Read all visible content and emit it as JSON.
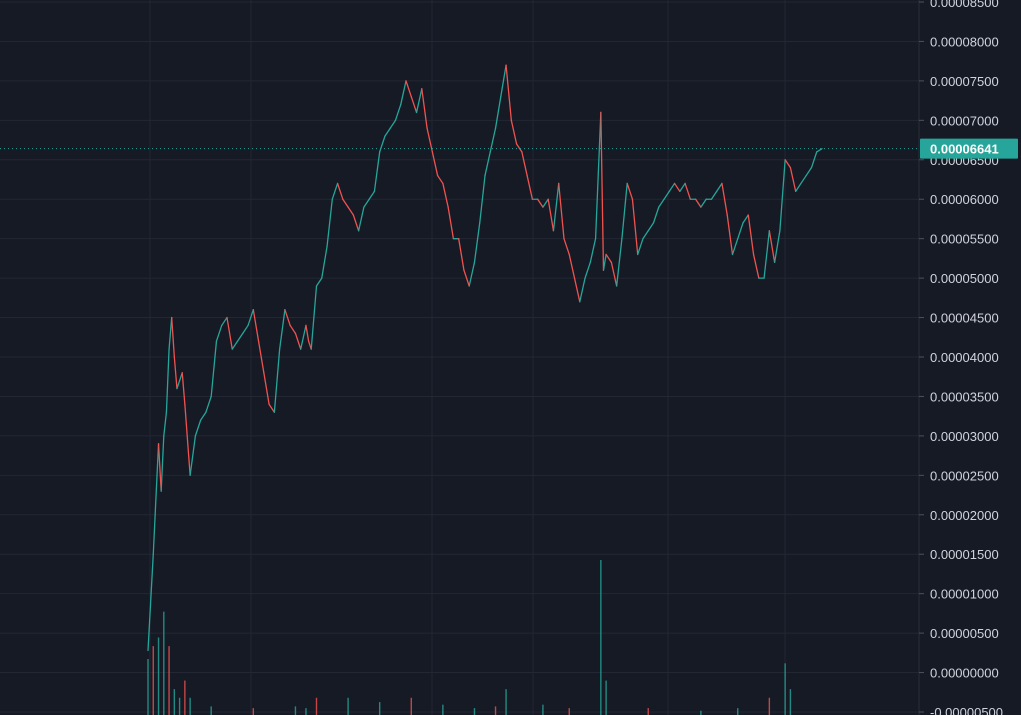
{
  "chart_data": {
    "type": "line",
    "title": "",
    "xlabel": "",
    "ylabel": "",
    "ylim": [
      -5e-06,
      8.5e-05
    ],
    "y_ticks": [
      "0.00008500",
      "0.00008000",
      "0.00007500",
      "0.00007000",
      "0.00006500",
      "0.00006000",
      "0.00005500",
      "0.00005000",
      "0.00004500",
      "0.00004000",
      "0.00003500",
      "0.00003000",
      "0.00002500",
      "0.00002000",
      "0.00001500",
      "0.00001000",
      "0.00000500",
      "0.00000000",
      "-0.00000500"
    ],
    "y_tick_values": [
      8.5e-05,
      8e-05,
      7.5e-05,
      7e-05,
      6.5e-05,
      6e-05,
      5.5e-05,
      5e-05,
      4.5e-05,
      4e-05,
      3.5e-05,
      3e-05,
      2.5e-05,
      2e-05,
      1.5e-05,
      1e-05,
      5e-06,
      0,
      -5e-06
    ],
    "last_price": 6.641e-05,
    "last_price_label": "0.00006641",
    "grid": true,
    "colors": {
      "background": "#161a25",
      "grid": "#232733",
      "up": "#26a69a",
      "down": "#ef5350",
      "text": "#d1d4dc",
      "price_tag": "#26a69a",
      "axis_border": "#2a2e39"
    },
    "price_x_range": [
      0,
      120
    ],
    "series": [
      {
        "values": [
          [
            0,
            2.8e-06
          ],
          [
            1,
            1.5e-05
          ],
          [
            2,
            2.9e-05
          ],
          [
            2.5,
            2.3e-05
          ],
          [
            3,
            3e-05
          ],
          [
            3.5,
            3.3e-05
          ],
          [
            4,
            4.1e-05
          ],
          [
            4.5,
            4.5e-05
          ],
          [
            5,
            4e-05
          ],
          [
            5.5,
            3.6e-05
          ],
          [
            6,
            3.7e-05
          ],
          [
            6.5,
            3.8e-05
          ],
          [
            7,
            3.4e-05
          ],
          [
            8,
            2.5e-05
          ],
          [
            9,
            3e-05
          ],
          [
            10,
            3.2e-05
          ],
          [
            11,
            3.3e-05
          ],
          [
            12,
            3.5e-05
          ],
          [
            13,
            4.2e-05
          ],
          [
            14,
            4.4e-05
          ],
          [
            15,
            4.5e-05
          ],
          [
            16,
            4.1e-05
          ],
          [
            17,
            4.2e-05
          ],
          [
            18,
            4.3e-05
          ],
          [
            19,
            4.4e-05
          ],
          [
            20,
            4.6e-05
          ],
          [
            21,
            4.2e-05
          ],
          [
            22,
            3.8e-05
          ],
          [
            23,
            3.4e-05
          ],
          [
            24,
            3.3e-05
          ],
          [
            25,
            4.1e-05
          ],
          [
            26,
            4.6e-05
          ],
          [
            27,
            4.4e-05
          ],
          [
            28,
            4.3e-05
          ],
          [
            29,
            4.1e-05
          ],
          [
            30,
            4.4e-05
          ],
          [
            30.5,
            4.2e-05
          ],
          [
            31,
            4.1e-05
          ],
          [
            32,
            4.9e-05
          ],
          [
            33,
            5e-05
          ],
          [
            34,
            5.4e-05
          ],
          [
            35,
            6e-05
          ],
          [
            36,
            6.2e-05
          ],
          [
            37,
            6e-05
          ],
          [
            38,
            5.9e-05
          ],
          [
            39,
            5.8e-05
          ],
          [
            40,
            5.6e-05
          ],
          [
            41,
            5.9e-05
          ],
          [
            42,
            6e-05
          ],
          [
            43,
            6.1e-05
          ],
          [
            44,
            6.6e-05
          ],
          [
            45,
            6.8e-05
          ],
          [
            46,
            6.9e-05
          ],
          [
            47,
            7e-05
          ],
          [
            48,
            7.2e-05
          ],
          [
            49,
            7.5e-05
          ],
          [
            50,
            7.3e-05
          ],
          [
            51,
            7.1e-05
          ],
          [
            52,
            7.4e-05
          ],
          [
            53,
            6.9e-05
          ],
          [
            54,
            6.6e-05
          ],
          [
            55,
            6.3e-05
          ],
          [
            56,
            6.2e-05
          ],
          [
            57,
            5.9e-05
          ],
          [
            58,
            5.5e-05
          ],
          [
            59,
            5.5e-05
          ],
          [
            60,
            5.1e-05
          ],
          [
            61,
            4.9e-05
          ],
          [
            62,
            5.2e-05
          ],
          [
            63,
            5.7e-05
          ],
          [
            64,
            6.3e-05
          ],
          [
            65,
            6.6e-05
          ],
          [
            66,
            6.9e-05
          ],
          [
            67,
            7.3e-05
          ],
          [
            68,
            7.7e-05
          ],
          [
            69,
            7e-05
          ],
          [
            70,
            6.7e-05
          ],
          [
            71,
            6.6e-05
          ],
          [
            72,
            6.3e-05
          ],
          [
            73,
            6e-05
          ],
          [
            74,
            6e-05
          ],
          [
            75,
            5.9e-05
          ],
          [
            76,
            6e-05
          ],
          [
            77,
            5.6e-05
          ],
          [
            78,
            6.2e-05
          ],
          [
            79,
            5.5e-05
          ],
          [
            80,
            5.3e-05
          ],
          [
            81,
            5e-05
          ],
          [
            82,
            4.7e-05
          ],
          [
            83,
            5e-05
          ],
          [
            84,
            5.2e-05
          ],
          [
            85,
            5.5e-05
          ],
          [
            86,
            7.1e-05
          ],
          [
            86.5,
            5.1e-05
          ],
          [
            87,
            5.3e-05
          ],
          [
            88,
            5.2e-05
          ],
          [
            89,
            4.9e-05
          ],
          [
            90,
            5.5e-05
          ],
          [
            91,
            6.2e-05
          ],
          [
            92,
            6e-05
          ],
          [
            93,
            5.3e-05
          ],
          [
            94,
            5.5e-05
          ],
          [
            95,
            5.6e-05
          ],
          [
            96,
            5.7e-05
          ],
          [
            97,
            5.9e-05
          ],
          [
            98,
            6e-05
          ],
          [
            99,
            6.1e-05
          ],
          [
            100,
            6.2e-05
          ],
          [
            101,
            6.1e-05
          ],
          [
            102,
            6.2e-05
          ],
          [
            103,
            6e-05
          ],
          [
            104,
            6e-05
          ],
          [
            105,
            5.9e-05
          ],
          [
            106,
            6e-05
          ],
          [
            107,
            6e-05
          ],
          [
            108,
            6.1e-05
          ],
          [
            109,
            6.2e-05
          ],
          [
            110,
            5.8e-05
          ],
          [
            111,
            5.3e-05
          ],
          [
            112,
            5.5e-05
          ],
          [
            113,
            5.7e-05
          ],
          [
            114,
            5.8e-05
          ],
          [
            115,
            5.3e-05
          ],
          [
            116,
            5e-05
          ],
          [
            117,
            5e-05
          ],
          [
            118,
            5.6e-05
          ],
          [
            119,
            5.2e-05
          ],
          [
            120,
            5.6e-05
          ],
          [
            121,
            6.5e-05
          ],
          [
            122,
            6.4e-05
          ],
          [
            123,
            6.1e-05
          ],
          [
            124,
            6.2e-05
          ],
          [
            125,
            6.3e-05
          ],
          [
            126,
            6.4e-05
          ],
          [
            127,
            6.6e-05
          ],
          [
            128,
            6.64e-05
          ]
        ]
      }
    ],
    "volume": [
      [
        0,
        6.5e-07
      ],
      [
        1,
        8e-07
      ],
      [
        2,
        9e-07
      ],
      [
        3,
        1.2e-06
      ],
      [
        4,
        8e-07
      ],
      [
        5,
        3e-07
      ],
      [
        6,
        2e-07
      ],
      [
        7,
        4e-07
      ],
      [
        8,
        2e-07
      ],
      [
        12,
        1e-07
      ],
      [
        20,
        8e-08
      ],
      [
        28,
        1e-07
      ],
      [
        30,
        8e-08
      ],
      [
        32,
        2e-07
      ],
      [
        38,
        2e-07
      ],
      [
        44,
        1.5e-07
      ],
      [
        50,
        2e-07
      ],
      [
        56,
        1.2e-07
      ],
      [
        62,
        8e-08
      ],
      [
        66,
        1e-07
      ],
      [
        68,
        3e-07
      ],
      [
        75,
        1.2e-07
      ],
      [
        80,
        8e-08
      ],
      [
        86,
        1.8e-06
      ],
      [
        87,
        4e-07
      ],
      [
        95,
        8e-08
      ],
      [
        105,
        5e-08
      ],
      [
        112,
        8e-08
      ],
      [
        118,
        2e-07
      ],
      [
        121,
        6e-07
      ],
      [
        122,
        3e-07
      ]
    ]
  }
}
